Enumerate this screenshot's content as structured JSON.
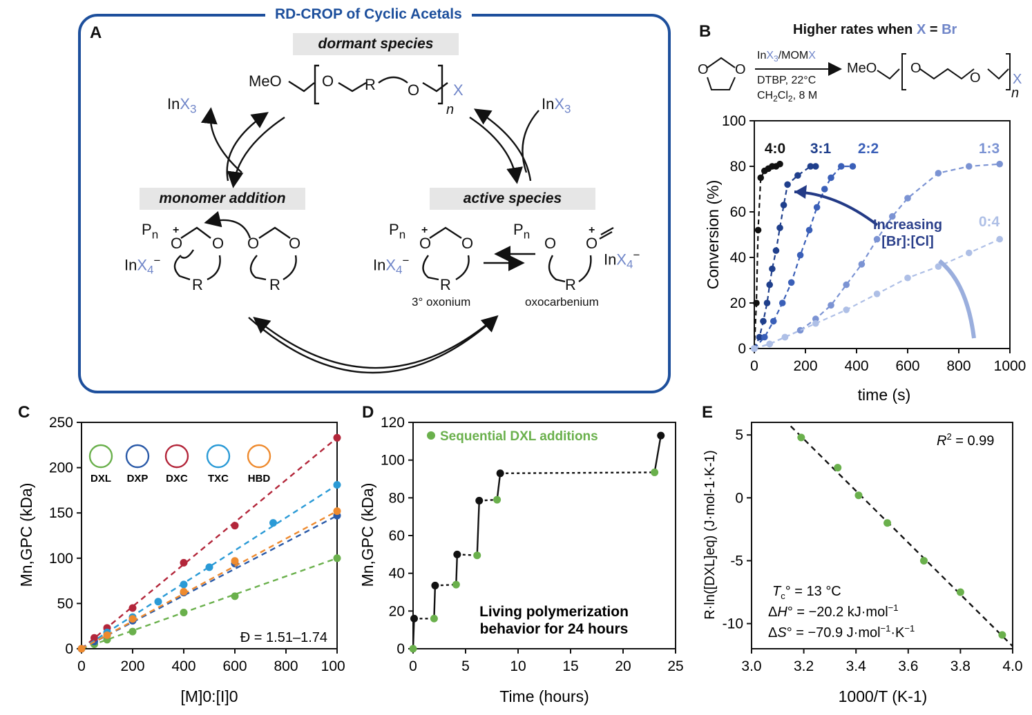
{
  "panelA": {
    "letter": "A",
    "title": "RD-CROP of Cyclic Acetals",
    "dormant_label": "dormant species",
    "monomer_label": "monomer addition",
    "active_label": "active species",
    "meo": "MeO",
    "o": "O",
    "r": "R",
    "n": "n",
    "x": "X",
    "inx3_in": "In",
    "inx3_x": "X",
    "inx3_sub": "3",
    "pn_p": "P",
    "pn_sub": "n",
    "plus": "+",
    "inx4_in": "In",
    "inx4_x": "X",
    "inx4_sub": "4",
    "minus": "−",
    "oxonium": "3° oxonium",
    "oxocarbenium": "oxocarbenium"
  },
  "panelB": {
    "letter": "B",
    "header_text": "Higher rates when ",
    "header_x": "X",
    "header_eq": " = ",
    "header_br": "Br",
    "reagent_in": "In",
    "reagent_x3": "X",
    "reagent_3": "3",
    "reagent_mom": "/MOM",
    "reagent_x": "X",
    "cond1": "DTBP, 22°C",
    "cond2_a": "CH",
    "cond2_b": "2",
    "cond2_c": "Cl",
    "cond2_d": "2",
    "cond2_e": ", 8 M",
    "product_meo": "MeO",
    "product_o": "O",
    "product_x": "X",
    "product_n": "n",
    "annotation_1": "Increasing",
    "annotation_2": "[Br]:[Cl]"
  },
  "panelC": {
    "letter": "C"
  },
  "panelD": {
    "letter": "D"
  },
  "panelE": {
    "letter": "E"
  },
  "colors": {
    "frame_blue": "#1d4f9c",
    "label_blue": "#6f85c8",
    "dxl": "#6ab04c",
    "dxp": "#2a5aa8",
    "dxc": "#b3263a",
    "txc": "#2a9ad6",
    "hbd": "#ee8a2e"
  },
  "chart_data": [
    {
      "id": "B",
      "type": "scatter",
      "xlabel": "time (s)",
      "ylabel": "Conversion (%)",
      "xlim": [
        0,
        1000
      ],
      "ylim": [
        0,
        100
      ],
      "xticks": [
        0,
        200,
        400,
        600,
        800,
        1000
      ],
      "yticks": [
        0,
        20,
        40,
        60,
        80,
        100
      ],
      "series": [
        {
          "name": "4:0",
          "color": "#111111",
          "x": [
            0,
            8,
            15,
            25,
            40,
            55,
            70,
            85,
            100
          ],
          "y": [
            0,
            20,
            52,
            75,
            78,
            79,
            80,
            80,
            81
          ]
        },
        {
          "name": "3:1",
          "color": "#1f3f8c",
          "x": [
            0,
            20,
            35,
            50,
            60,
            70,
            85,
            100,
            115,
            130,
            170,
            220,
            240
          ],
          "y": [
            0,
            5,
            12,
            20,
            28,
            35,
            43,
            53,
            63,
            72,
            76,
            80,
            80
          ]
        },
        {
          "name": "2:2",
          "color": "#3a5fb8",
          "x": [
            0,
            40,
            75,
            110,
            145,
            180,
            215,
            245,
            275,
            300,
            340,
            385
          ],
          "y": [
            0,
            5,
            12,
            20,
            29,
            41,
            52,
            62,
            70,
            75,
            80,
            80
          ]
        },
        {
          "name": "1:3",
          "color": "#7b93d3",
          "x": [
            0,
            60,
            120,
            180,
            240,
            300,
            360,
            420,
            480,
            540,
            600,
            720,
            840,
            960
          ],
          "y": [
            0,
            2,
            5,
            8,
            13,
            19,
            28,
            37,
            48,
            58,
            66,
            77,
            80,
            81
          ]
        },
        {
          "name": "0:4",
          "color": "#aebfe6",
          "x": [
            0,
            60,
            120,
            240,
            360,
            480,
            600,
            720,
            840,
            960
          ],
          "y": [
            0,
            2,
            5,
            11,
            17,
            24,
            31,
            36,
            42,
            48
          ]
        }
      ]
    },
    {
      "id": "C",
      "type": "scatter",
      "xlabel": "[M]0:[I]0",
      "ylabel": "Mn,GPC (kDa)",
      "xlim": [
        0,
        1000
      ],
      "ylim": [
        0,
        250
      ],
      "xticks": [
        0,
        200,
        400,
        600,
        800,
        1000
      ],
      "yticks": [
        0,
        50,
        100,
        150,
        200,
        250
      ],
      "dispersity": "Đ = 1.51–1.74",
      "legend": [
        "DXL",
        "DXP",
        "DXC",
        "TXC",
        "HBD"
      ],
      "series": [
        {
          "name": "DXL",
          "color": "#6ab04c",
          "x": [
            0,
            50,
            100,
            200,
            400,
            600,
            1000
          ],
          "y": [
            0,
            5,
            10,
            19,
            40,
            58,
            100
          ]
        },
        {
          "name": "DXP",
          "color": "#2a5aa8",
          "x": [
            0,
            50,
            100,
            200,
            400,
            600,
            1000
          ],
          "y": [
            0,
            8,
            15,
            31,
            62,
            94,
            147
          ]
        },
        {
          "name": "DXC",
          "color": "#b3263a",
          "x": [
            0,
            50,
            100,
            200,
            400,
            600,
            1000
          ],
          "y": [
            0,
            12,
            23,
            45,
            95,
            136,
            233
          ]
        },
        {
          "name": "TXC",
          "color": "#2a9ad6",
          "x": [
            0,
            100,
            200,
            300,
            400,
            500,
            750,
            1000
          ],
          "y": [
            0,
            18,
            35,
            52,
            71,
            90,
            139,
            181
          ]
        },
        {
          "name": "HBD",
          "color": "#ee8a2e",
          "x": [
            0,
            100,
            200,
            400,
            600,
            1000
          ],
          "y": [
            0,
            15,
            33,
            63,
            97,
            152
          ]
        }
      ]
    },
    {
      "id": "D",
      "type": "line",
      "xlabel": "Time (hours)",
      "ylabel": "Mn,GPC (kDa)",
      "xlim": [
        0,
        25
      ],
      "ylim": [
        0,
        120
      ],
      "xticks": [
        0,
        5,
        10,
        15,
        20,
        25
      ],
      "yticks": [
        0,
        20,
        40,
        60,
        80,
        100,
        120
      ],
      "legend": "Sequential DXL additions",
      "annotation": "Living polymerization behavior for 24 hours",
      "green": {
        "x": [
          0,
          2,
          4.1,
          6.1,
          8,
          23
        ],
        "y": [
          0,
          16,
          34,
          49.5,
          79,
          93.5
        ]
      },
      "black": {
        "x": [
          0.1,
          2.1,
          4.2,
          6.3,
          8.3,
          23.6
        ],
        "y": [
          16,
          33.5,
          50,
          78.5,
          93,
          113
        ]
      }
    },
    {
      "id": "E",
      "type": "scatter",
      "xlabel": "1000/T (K-1)",
      "ylabel": "R·ln([DXL]eq) (J·mol-1·K-1)",
      "xlim": [
        3.0,
        4.0
      ],
      "ylim": [
        -12,
        6
      ],
      "xticks": [
        3.0,
        3.2,
        3.4,
        3.6,
        3.8,
        4.0
      ],
      "yticks": [
        -10,
        -5,
        0,
        5
      ],
      "r2": "= 0.99",
      "tc": "= 13 °C",
      "dh": "= −20.2 kJ·mol",
      "ds": "= −70.9 J·mol",
      "points": {
        "x": [
          3.19,
          3.33,
          3.41,
          3.52,
          3.66,
          3.8,
          3.96
        ],
        "y": [
          4.8,
          2.4,
          0.2,
          -2.0,
          -5.0,
          -7.5,
          -10.9
        ]
      },
      "fit": {
        "x": [
          3.15,
          4.0
        ],
        "y": [
          5.7,
          -11.8
        ]
      }
    }
  ]
}
